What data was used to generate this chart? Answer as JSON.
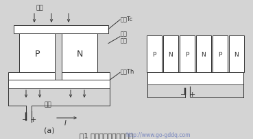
{
  "title": "图1 半导体制冷基本原理图",
  "watermark": "http://www.go-gddq.com",
  "label_a": "(a)",
  "label_P1": "P",
  "label_N1": "N",
  "block_labels": [
    "P",
    "N",
    "P",
    "N",
    "P",
    "N"
  ],
  "text_absorb": "吸热",
  "text_release": "放热",
  "text_cold": "冷端Tc",
  "text_hot": "热端Th",
  "text_copper1": "铜连",
  "text_copper2": "接片",
  "text_current": "I",
  "bg_color": "#d4d4d4",
  "line_color": "#333333",
  "white": "#ffffff"
}
